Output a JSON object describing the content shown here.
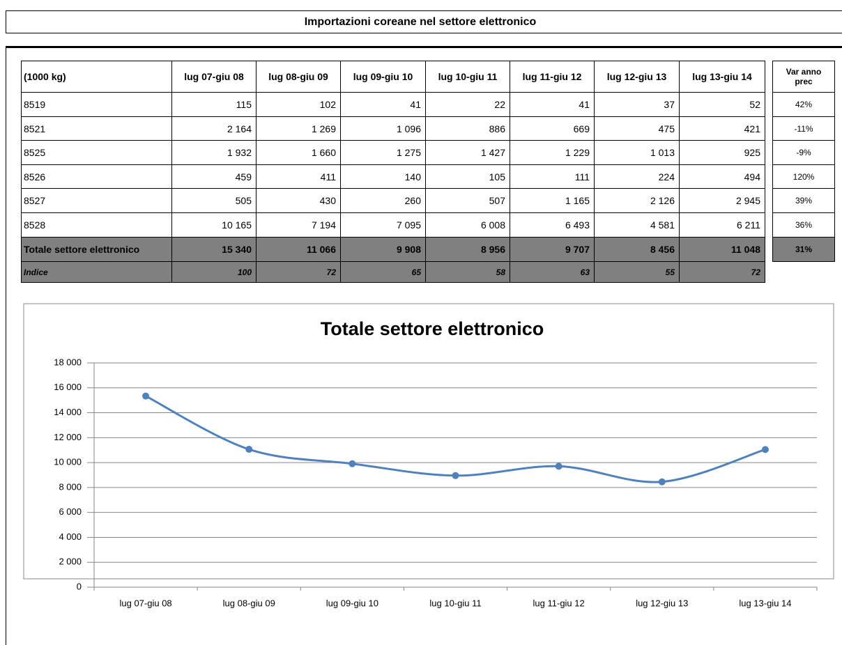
{
  "title": "Importazioni coreane nel settore elettronico",
  "table": {
    "header": [
      "(1000 kg)",
      "lug 07-giu 08",
      "lug 08-giu 09",
      "lug 09-giu 10",
      "lug 10-giu 11",
      "lug 11-giu 12",
      "lug 12-giu 13",
      "lug 13-giu 14"
    ],
    "var_header": "Var anno prec",
    "rows": [
      [
        "8519",
        "115",
        "102",
        "41",
        "22",
        "41",
        "37",
        "52"
      ],
      [
        "8521",
        "2 164",
        "1 269",
        "1 096",
        "886",
        "669",
        "475",
        "421"
      ],
      [
        "8525",
        "1 932",
        "1 660",
        "1 275",
        "1 427",
        "1 229",
        "1 013",
        "925"
      ],
      [
        "8526",
        "459",
        "411",
        "140",
        "105",
        "111",
        "224",
        "494"
      ],
      [
        "8527",
        "505",
        "430",
        "260",
        "507",
        "1 165",
        "2 126",
        "2 945"
      ],
      [
        "8528",
        "10 165",
        "7 194",
        "7 095",
        "6 008",
        "6 493",
        "4 581",
        "6 211"
      ]
    ],
    "var": [
      "42%",
      "-11%",
      "-9%",
      "120%",
      "39%",
      "36%"
    ],
    "total": [
      "Totale settore elettronico",
      "15 340",
      "11 066",
      "9 908",
      "8 956",
      "9 707",
      "8 456",
      "11 048"
    ],
    "total_var": "31%",
    "index": [
      "Indice",
      "100",
      "72",
      "65",
      "58",
      "63",
      "55",
      "72"
    ]
  },
  "chart_data": {
    "type": "line",
    "title": "Totale settore elettronico",
    "categories": [
      "lug 07-giu 08",
      "lug 08-giu 09",
      "lug 09-giu 10",
      "lug 10-giu 11",
      "lug 11-giu 12",
      "lug 12-giu 13",
      "lug 13-giu 14"
    ],
    "values": [
      15340,
      11066,
      9908,
      8956,
      9707,
      8456,
      11048
    ],
    "color": "#4f81bd",
    "ylim": [
      0,
      18000
    ],
    "yticks": [
      0,
      {
        "value": 2000,
        "label": "2 000"
      },
      {
        "value": 4000,
        "label": "4 000"
      },
      {
        "value": 6000,
        "label": "6 000"
      },
      {
        "value": 8000,
        "label": "8 000"
      },
      {
        "value": 10000,
        "label": "10 000"
      },
      {
        "value": 12000,
        "label": "12 000"
      },
      {
        "value": 14000,
        "label": "14 000"
      },
      {
        "value": 16000,
        "label": "16 000"
      },
      {
        "value": 18000,
        "label": "18 000"
      }
    ],
    "grid": true
  }
}
